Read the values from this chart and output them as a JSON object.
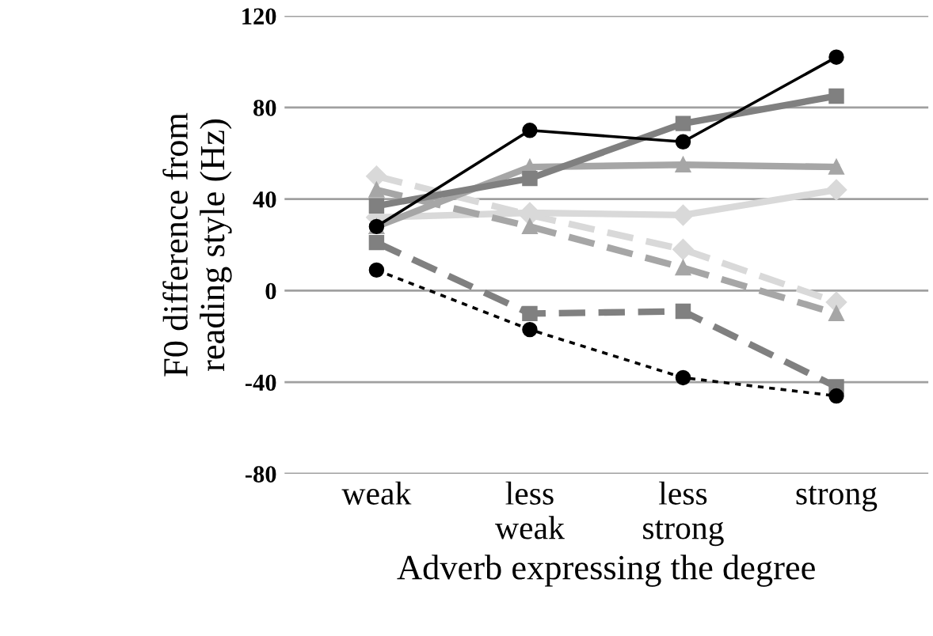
{
  "chart_data": {
    "type": "line",
    "xlabel": "Adverb expressing the degree",
    "ylabel": "F0 difference from\nreading style (Hz)",
    "categories": [
      "weak",
      "less\nweak",
      "less\nstrong",
      "strong"
    ],
    "ylim": [
      -80,
      120
    ],
    "yticks": [
      -80,
      -40,
      0,
      40,
      80,
      120
    ],
    "grid": "y",
    "legend": false,
    "series": [
      {
        "color": "#d9d9d9",
        "values": [
          50,
          33,
          18,
          -5
        ],
        "marker": "diamond",
        "line_style": "dashed"
      },
      {
        "color": "#d9d9d9",
        "values": [
          32,
          34,
          33,
          44
        ],
        "marker": "diamond",
        "line_style": "solid"
      },
      {
        "color": "#a6a6a6",
        "values": [
          44,
          28,
          10,
          -10
        ],
        "marker": "triangle",
        "line_style": "dashed"
      },
      {
        "color": "#a6a6a6",
        "values": [
          28,
          54,
          55,
          54
        ],
        "marker": "triangle",
        "line_style": "solid"
      },
      {
        "color": "#808080",
        "values": [
          21,
          -10,
          -9,
          -42
        ],
        "marker": "square",
        "line_style": "dashed"
      },
      {
        "color": "#808080",
        "values": [
          37,
          49,
          73,
          85
        ],
        "marker": "square",
        "line_style": "solid"
      },
      {
        "color": "#000000",
        "values": [
          9,
          -17,
          -38,
          -46
        ],
        "marker": "circle",
        "line_style": "dotted"
      },
      {
        "color": "#000000",
        "values": [
          28,
          70,
          65,
          102
        ],
        "marker": "circle",
        "line_style": "solid"
      }
    ]
  }
}
